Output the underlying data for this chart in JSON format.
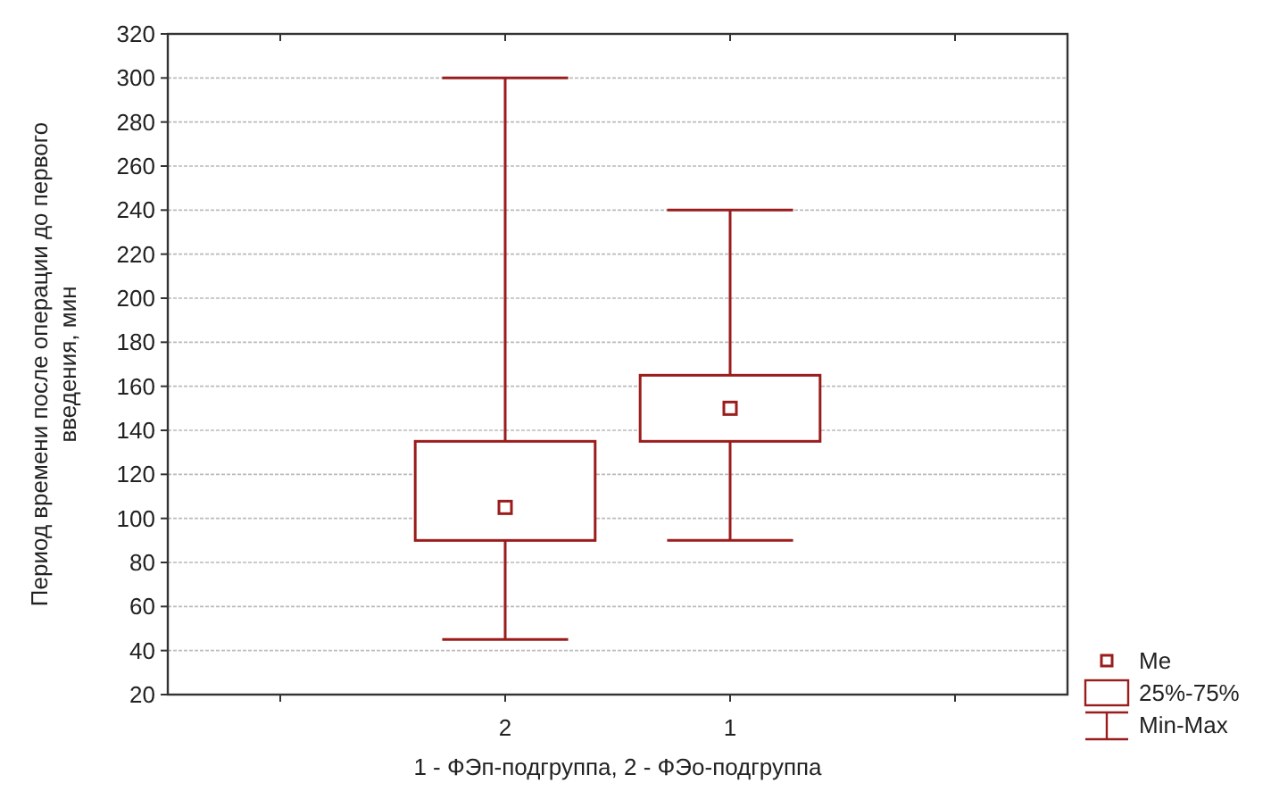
{
  "chart_data": {
    "type": "box",
    "xlabel": "1 - ФЭп-подгруппа, 2 - ФЭо-подгруппа",
    "ylabel": "Период времени после операции до первого введения, мин",
    "categories": [
      null,
      "2",
      "1",
      null
    ],
    "boxes": [
      null,
      {
        "low": 45,
        "q1": 90,
        "median": 105,
        "q3": 135,
        "high": 300
      },
      {
        "low": 90,
        "q1": 135,
        "median": 150,
        "q3": 165,
        "high": 240
      },
      null
    ],
    "color": "#9b1c1c",
    "ylim": [
      20,
      320
    ],
    "yticks": [
      20,
      40,
      60,
      80,
      100,
      120,
      140,
      160,
      180,
      200,
      220,
      240,
      260,
      280,
      300,
      320
    ],
    "grid": "y",
    "annotations": [
      "Me",
      "25%-75%",
      "Min-Max"
    ]
  }
}
